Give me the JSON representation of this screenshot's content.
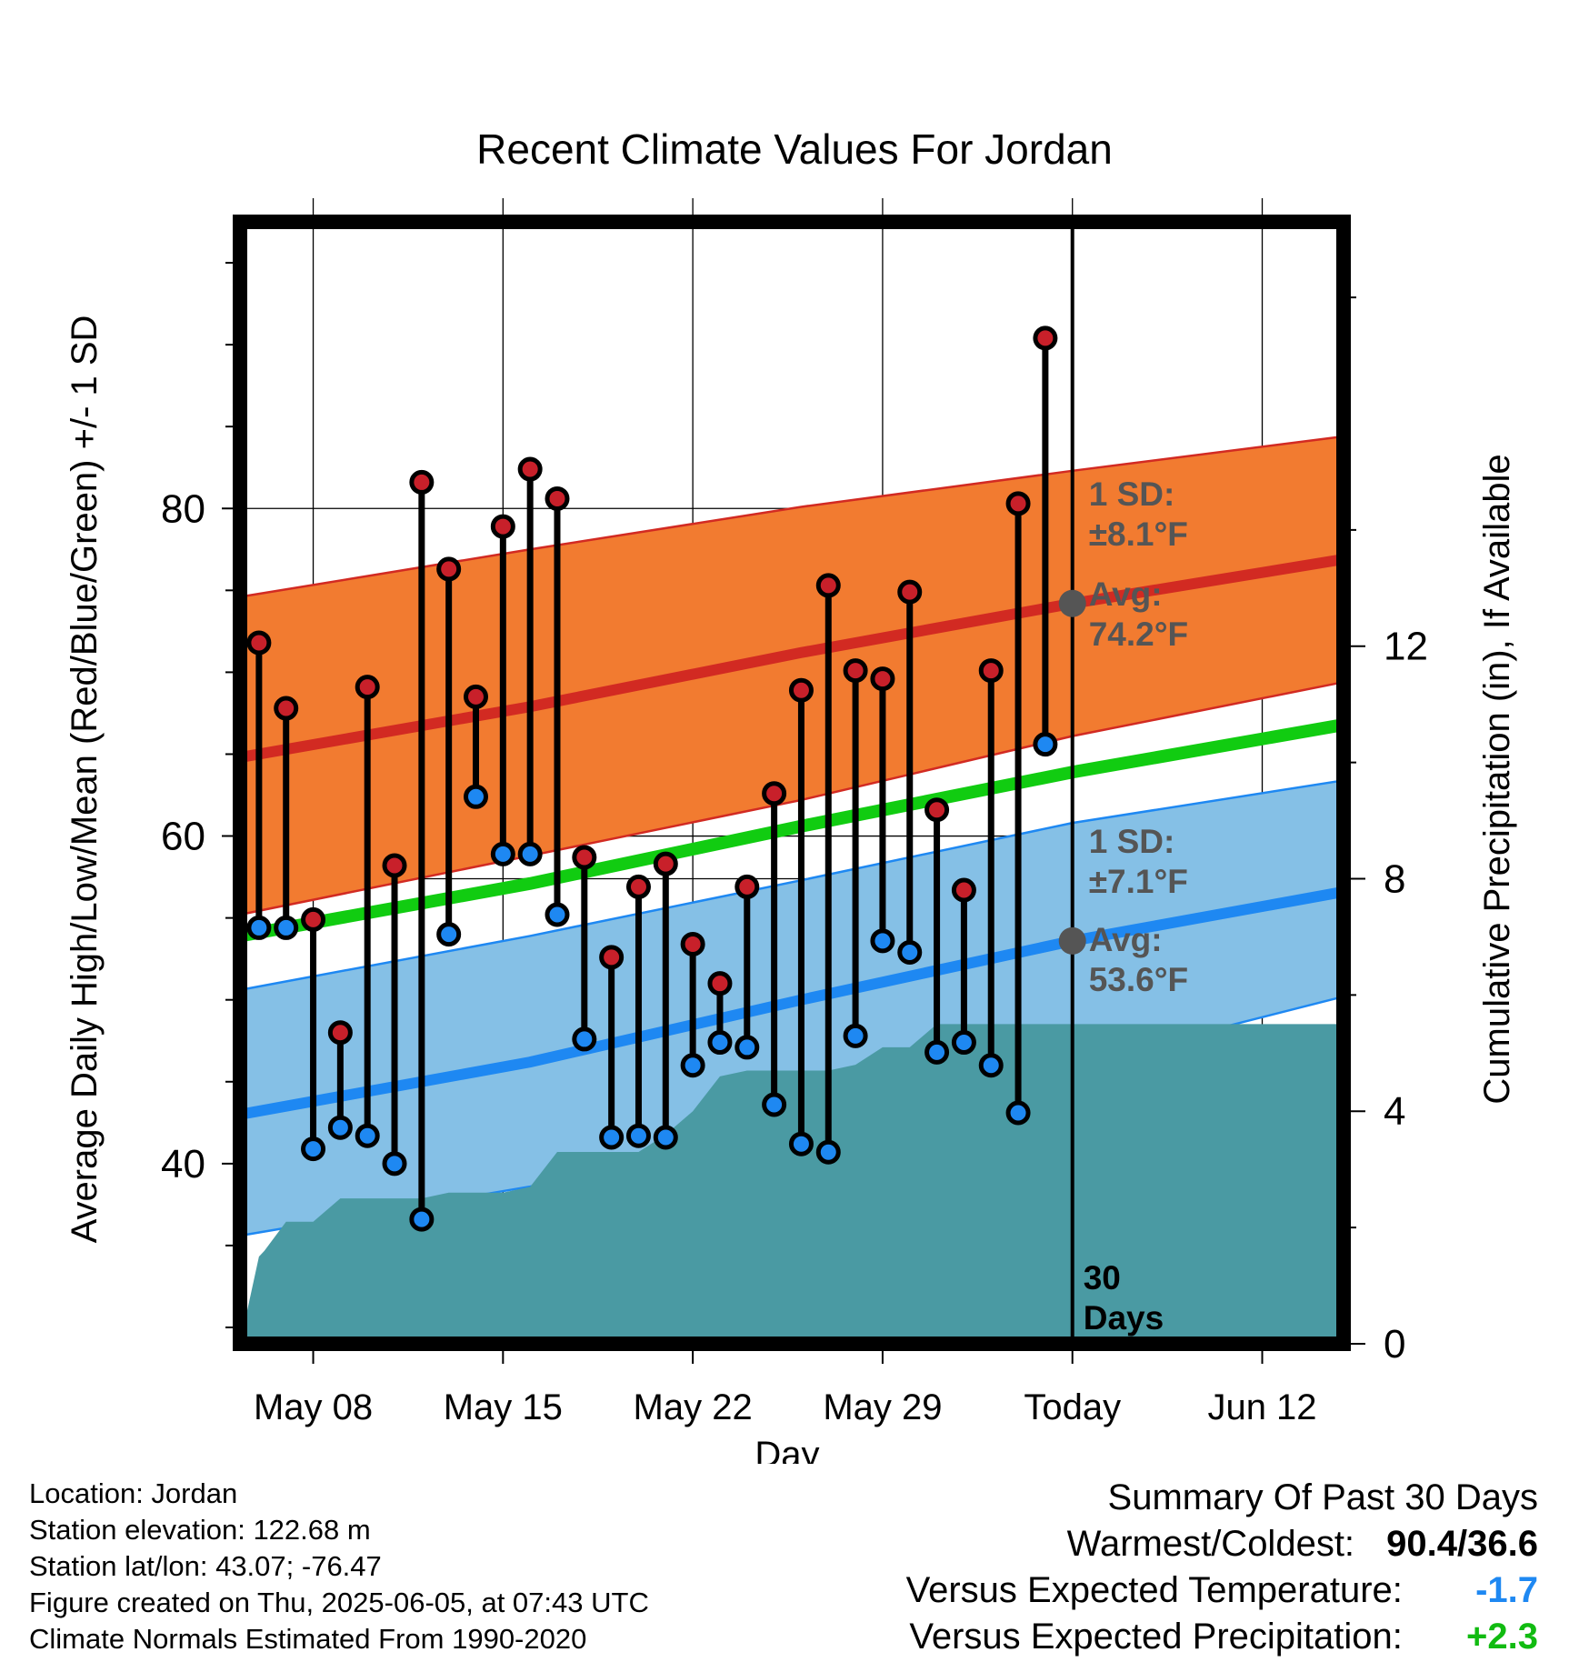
{
  "chart_data": {
    "type": "line",
    "title": "Recent Climate Values For Jordan",
    "xlabel": "Day",
    "ylabel": "Average Daily High/Low/Mean (Red/Blue/Green) +/- 1 SD",
    "y2label": "Cumulative Precipitation (in), If Available",
    "ylim": [
      29,
      97.5
    ],
    "y2lim": [
      0,
      19.3
    ],
    "yticks": [
      "40",
      "60",
      "80"
    ],
    "y2ticks": [
      "0",
      "4",
      "8",
      "12"
    ],
    "xlim": [
      -30.7,
      10
    ],
    "xticks": [
      {
        "day": -28,
        "label": "May 08"
      },
      {
        "day": -21,
        "label": "May 15"
      },
      {
        "day": -14,
        "label": "May 22"
      },
      {
        "day": -7,
        "label": "May 29"
      },
      {
        "day": 0,
        "label": "Today"
      },
      {
        "day": 7,
        "label": "Jun 12"
      }
    ],
    "grid": true,
    "colors": {
      "high_band": "#f27b30",
      "high_line": "#d22a22",
      "low_band": "#85c0e6",
      "low_line": "#1e88f2",
      "mean_line": "#11cc11",
      "precip": "#4a9aa3",
      "high_dot": "#c8202a",
      "low_dot": "#1e88f2",
      "annotation": "#555555",
      "pos_green": "#11bb11",
      "neg_blue": "#1e88f2"
    },
    "normals": {
      "x": [
        -30.7,
        -20,
        -10,
        0,
        10
      ],
      "avg_high": [
        64.8,
        67.9,
        71.2,
        74.2,
        76.9
      ],
      "high_upper": [
        74.6,
        77.5,
        80.1,
        82.3,
        84.4
      ],
      "high_lower": [
        55.2,
        58.8,
        62.2,
        66.1,
        69.4
      ],
      "avg_low": [
        43.0,
        46.2,
        50.0,
        53.6,
        56.6
      ],
      "low_upper": [
        50.6,
        53.9,
        57.3,
        60.8,
        63.4
      ],
      "low_lower": [
        35.6,
        38.6,
        42.3,
        46.0,
        50.2
      ],
      "avg_mean": [
        53.9,
        57.1,
        60.6,
        63.9,
        66.8
      ]
    },
    "observed": {
      "day": [
        -30,
        -29,
        -28,
        -27,
        -26,
        -25,
        -24,
        -23,
        -22,
        -21,
        -20,
        -19,
        -18,
        -17,
        -16,
        -15,
        -14,
        -13,
        -12,
        -11,
        -10,
        -9,
        -8,
        -7,
        -6,
        -5,
        -4,
        -3,
        -2,
        -1
      ],
      "high": [
        71.8,
        67.8,
        54.9,
        48.0,
        69.1,
        58.2,
        81.6,
        76.3,
        68.5,
        78.9,
        82.4,
        80.6,
        58.7,
        52.6,
        56.9,
        58.3,
        53.4,
        51.0,
        56.9,
        62.6,
        68.9,
        75.3,
        70.1,
        69.6,
        74.9,
        61.6,
        56.7,
        70.1,
        80.3,
        90.4
      ],
      "low": [
        54.4,
        54.4,
        40.9,
        42.2,
        41.7,
        40.0,
        36.6,
        54.0,
        62.4,
        58.9,
        58.9,
        55.2,
        47.6,
        41.6,
        41.7,
        41.6,
        46.0,
        47.4,
        47.1,
        43.6,
        41.2,
        40.7,
        47.8,
        53.6,
        52.9,
        46.8,
        47.4,
        46.0,
        43.1,
        65.6
      ]
    },
    "precip": {
      "x": [
        -30.7,
        -30,
        -29.8,
        -29,
        -28,
        -27,
        -26,
        -25,
        -24,
        -23,
        -22,
        -21,
        -20,
        -19,
        -18,
        -17,
        -16,
        -15,
        -14,
        -13,
        -12,
        -11,
        -10,
        -9,
        -8,
        -7,
        -6,
        -5,
        -4,
        -3,
        -2,
        -1,
        0,
        10
      ],
      "values": [
        0,
        1.5,
        1.6,
        2.1,
        2.1,
        2.5,
        2.5,
        2.5,
        2.5,
        2.6,
        2.6,
        2.6,
        2.7,
        3.3,
        3.3,
        3.3,
        3.3,
        3.6,
        4.0,
        4.6,
        4.7,
        4.7,
        4.7,
        4.7,
        4.8,
        5.1,
        5.1,
        5.5,
        5.5,
        5.5,
        5.5,
        5.5,
        5.5,
        5.5
      ]
    },
    "annotations": {
      "high_sd_label": "1 SD:",
      "high_sd_value": "±8.1°F",
      "high_avg_label": "Avg:",
      "high_avg_value": "74.2°F",
      "low_sd_label": "1 SD:",
      "low_sd_value": "±7.1°F",
      "low_avg_label": "Avg:",
      "low_avg_value": "53.6°F",
      "window_label_1": "30",
      "window_label_2": "Days"
    }
  },
  "footer": {
    "location": "Location: Jordan",
    "elevation": "Station elevation: 122.68 m",
    "latlon": "Station lat/lon: 43.07; -76.47",
    "created": "Figure created on Thu, 2025-06-05, at 07:43 UTC",
    "normals": "Climate Normals Estimated From 1990-2020"
  },
  "summary": {
    "heading": "Summary Of Past 30 Days",
    "warm_cold_label": "Warmest/Coldest:",
    "warm_cold_value": "90.4/36.6",
    "temp_label": "Versus Expected Temperature:",
    "temp_value": "-1.7",
    "precip_label": "Versus Expected Precipitation:",
    "precip_value": "+2.3"
  }
}
